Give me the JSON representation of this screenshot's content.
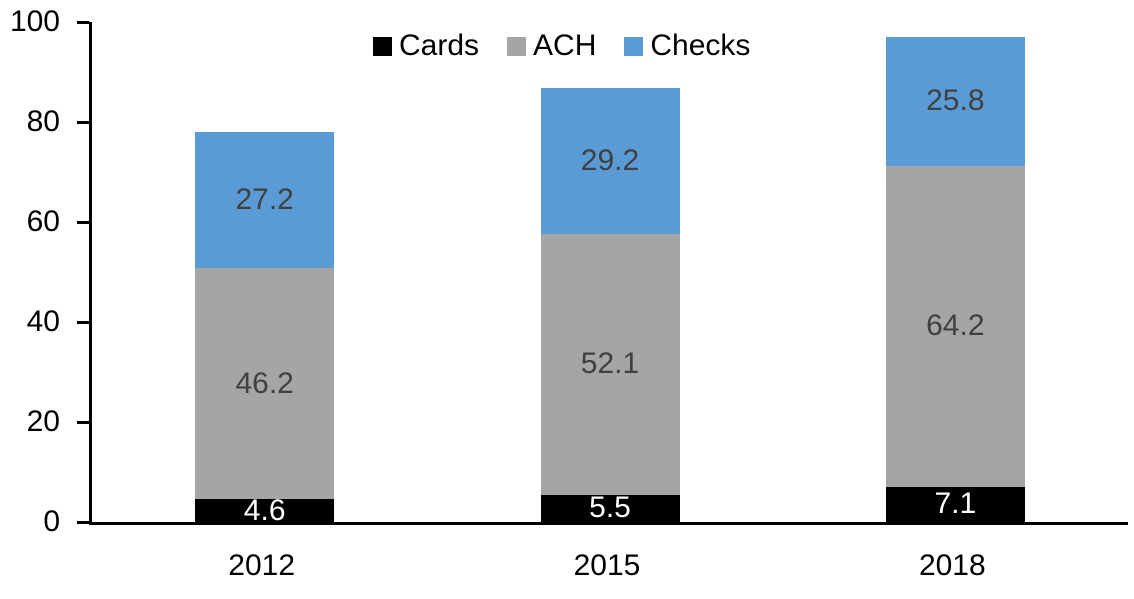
{
  "chart_data": {
    "type": "bar",
    "stacked": true,
    "categories": [
      "2012",
      "2015",
      "2018"
    ],
    "series": [
      {
        "name": "Cards",
        "values": [
          4.6,
          5.5,
          7.1
        ],
        "color": "#000000",
        "label_color": "#FFFFFF"
      },
      {
        "name": "ACH",
        "values": [
          46.2,
          52.1,
          64.2
        ],
        "color": "#A5A5A5",
        "label_color": "#404040"
      },
      {
        "name": "Checks",
        "values": [
          27.2,
          29.2,
          25.8
        ],
        "color": "#5B9BD5",
        "label_color": "#404040"
      }
    ],
    "totals": [
      78.0,
      86.8,
      97.1
    ],
    "title": "",
    "xlabel": "",
    "ylabel": "",
    "ylim": [
      0,
      100
    ],
    "yticks": [
      0,
      20,
      40,
      60,
      80,
      100
    ],
    "grid": false,
    "legend_position": "top",
    "axis_color": "#000000",
    "background_color": "#FFFFFF"
  }
}
